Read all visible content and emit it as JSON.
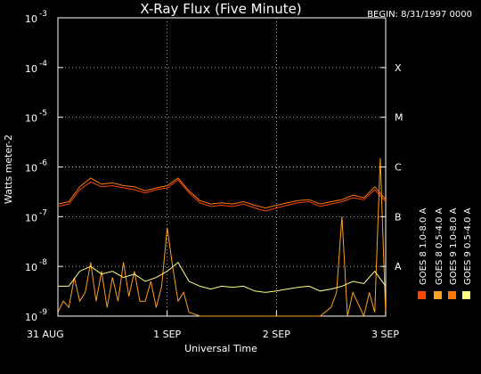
{
  "chart_data": {
    "type": "line",
    "title": "X-Ray Flux (Five Minute)",
    "begin_label": "BEGIN: 8/31/1997 0000",
    "xlabel": "Universal Time",
    "ylabel": "Watts meter-2",
    "y_scale": "log",
    "ylim": [
      1e-09,
      0.001
    ],
    "y_ticks": [
      {
        "value": 0.001,
        "base": "10",
        "exp": "-3"
      },
      {
        "value": 0.0001,
        "base": "10",
        "exp": "-4"
      },
      {
        "value": 1e-05,
        "base": "10",
        "exp": "-5"
      },
      {
        "value": 1e-06,
        "base": "10",
        "exp": "-6"
      },
      {
        "value": 1e-07,
        "base": "10",
        "exp": "-7"
      },
      {
        "value": 1e-08,
        "base": "10",
        "exp": "-8"
      },
      {
        "value": 1e-09,
        "base": "10",
        "exp": "-9"
      }
    ],
    "x_ticks": [
      {
        "value": 0,
        "label": "31 AUG"
      },
      {
        "value": 1,
        "label": "1 SEP"
      },
      {
        "value": 2,
        "label": "2 SEP"
      },
      {
        "value": 3,
        "label": "3 SEP"
      }
    ],
    "flare_classes": [
      {
        "label": "X",
        "value": 0.0001
      },
      {
        "label": "M",
        "value": 1e-05
      },
      {
        "label": "C",
        "value": 1e-06
      },
      {
        "label": "B",
        "value": 1e-07
      },
      {
        "label": "A",
        "value": 1e-08
      }
    ],
    "grid": true,
    "legend_position": "right",
    "series": [
      {
        "name": "GOES 8 1.0-8.0 A",
        "color": "#ff4400",
        "x": [
          0.0,
          0.1,
          0.2,
          0.3,
          0.4,
          0.5,
          0.6,
          0.7,
          0.8,
          0.9,
          1.0,
          1.1,
          1.2,
          1.3,
          1.4,
          1.5,
          1.6,
          1.7,
          1.8,
          1.9,
          2.0,
          2.1,
          2.2,
          2.3,
          2.4,
          2.5,
          2.6,
          2.7,
          2.8,
          2.9,
          3.0
        ],
        "y": [
          1.6e-07,
          1.8e-07,
          3.5e-07,
          5e-07,
          4e-07,
          4.2e-07,
          3.8e-07,
          3.5e-07,
          3e-07,
          3.5e-07,
          3.8e-07,
          5.5e-07,
          3e-07,
          1.9e-07,
          1.6e-07,
          1.7e-07,
          1.6e-07,
          1.8e-07,
          1.5e-07,
          1.3e-07,
          1.5e-07,
          1.7e-07,
          1.9e-07,
          2e-07,
          1.6e-07,
          1.8e-07,
          2e-07,
          2.4e-07,
          2.2e-07,
          3.5e-07,
          2e-07
        ]
      },
      {
        "name": "GOES 8 0.5-4.0 A",
        "color": "#ffa020",
        "x": [
          0.0,
          0.05,
          0.1,
          0.15,
          0.2,
          0.25,
          0.3,
          0.35,
          0.4,
          0.45,
          0.5,
          0.55,
          0.6,
          0.65,
          0.7,
          0.75,
          0.8,
          0.85,
          0.9,
          0.95,
          1.0,
          1.05,
          1.1,
          1.15,
          1.2,
          1.3,
          1.4,
          1.5,
          1.6,
          1.7,
          1.8,
          1.9,
          2.0,
          2.1,
          2.2,
          2.3,
          2.4,
          2.5,
          2.55,
          2.6,
          2.65,
          2.7,
          2.8,
          2.85,
          2.9,
          2.95,
          3.0
        ],
        "y": [
          1.2e-09,
          2e-09,
          1.5e-09,
          6e-09,
          2e-09,
          3e-09,
          1.2e-08,
          2e-09,
          8e-09,
          1.5e-09,
          6e-09,
          2e-09,
          1.2e-08,
          2.5e-09,
          8e-09,
          2e-09,
          2e-09,
          5e-09,
          1.5e-09,
          4e-09,
          6e-08,
          1e-08,
          2e-09,
          3e-09,
          1.2e-09,
          1e-09,
          1e-09,
          1e-09,
          1e-09,
          1e-09,
          1e-09,
          1e-09,
          1e-09,
          1e-09,
          1e-09,
          1e-09,
          1e-09,
          1.5e-09,
          3e-09,
          1e-07,
          1e-09,
          3e-09,
          1e-09,
          3e-09,
          1.2e-09,
          1.5e-06,
          1e-09
        ]
      },
      {
        "name": "GOES 9 1.0-8.0 A",
        "color": "#ff7a00",
        "x": [
          0.0,
          0.1,
          0.2,
          0.3,
          0.4,
          0.5,
          0.6,
          0.7,
          0.8,
          0.9,
          1.0,
          1.1,
          1.2,
          1.3,
          1.4,
          1.5,
          1.6,
          1.7,
          1.8,
          1.9,
          2.0,
          2.1,
          2.2,
          2.3,
          2.4,
          2.5,
          2.6,
          2.7,
          2.8,
          2.9,
          3.0
        ],
        "y": [
          1.8e-07,
          2e-07,
          4e-07,
          6e-07,
          4.5e-07,
          4.8e-07,
          4.2e-07,
          4e-07,
          3.3e-07,
          3.8e-07,
          4.2e-07,
          6e-07,
          3.3e-07,
          2.1e-07,
          1.8e-07,
          1.9e-07,
          1.8e-07,
          2e-07,
          1.7e-07,
          1.5e-07,
          1.7e-07,
          1.9e-07,
          2.1e-07,
          2.2e-07,
          1.8e-07,
          2e-07,
          2.2e-07,
          2.7e-07,
          2.4e-07,
          4e-07,
          2.2e-07
        ]
      },
      {
        "name": "GOES 9 0.5-4.0 A",
        "color": "#ffff80",
        "x": [
          0.0,
          0.1,
          0.2,
          0.3,
          0.4,
          0.5,
          0.6,
          0.7,
          0.8,
          0.9,
          1.0,
          1.1,
          1.2,
          1.3,
          1.4,
          1.5,
          1.6,
          1.7,
          1.8,
          1.9,
          2.0,
          2.1,
          2.2,
          2.3,
          2.4,
          2.5,
          2.6,
          2.7,
          2.8,
          2.9,
          3.0
        ],
        "y": [
          4e-09,
          4e-09,
          8e-09,
          1e-08,
          7e-09,
          8e-09,
          6e-09,
          7e-09,
          5e-09,
          6e-09,
          8e-09,
          1.2e-08,
          5e-09,
          4e-09,
          3.5e-09,
          4e-09,
          3.8e-09,
          4e-09,
          3.2e-09,
          3e-09,
          3.2e-09,
          3.5e-09,
          3.8e-09,
          4e-09,
          3.2e-09,
          3.5e-09,
          4e-09,
          5e-09,
          4.5e-09,
          8e-09,
          4e-09
        ]
      }
    ]
  }
}
